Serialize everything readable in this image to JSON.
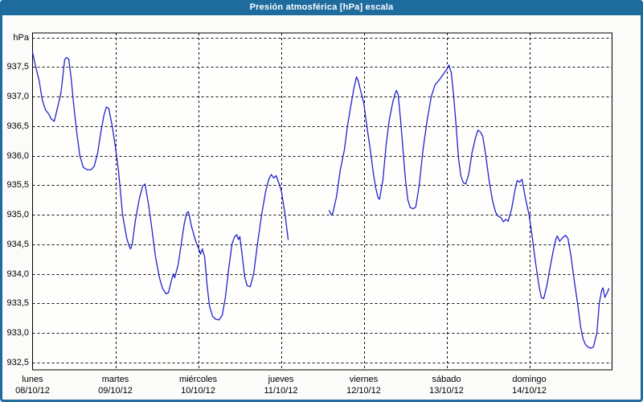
{
  "window": {
    "title": "Presión atmosférica [hPa] escala"
  },
  "colors": {
    "titlebar": "#1e6b9e",
    "frame": "#1e6b9e",
    "line": "#2222cc",
    "grid": "#111111",
    "window_bg": "#fbfcf9",
    "plot_bg": "#fefefd",
    "title_text": "#ffffff",
    "label_text": "#000000"
  },
  "chart_data": {
    "type": "line",
    "title": "Presión atmosférica [hPa] escala",
    "ylabel": "hPa",
    "ylim": [
      932.5,
      938.0
    ],
    "x_range_hours": 168,
    "grid": "dashed",
    "legend_position": "none",
    "y_ticks": [
      {
        "value": 938.0,
        "label": "hPa"
      },
      {
        "value": 937.5,
        "label": "937,5"
      },
      {
        "value": 937.0,
        "label": "937,0"
      },
      {
        "value": 936.5,
        "label": "936,5"
      },
      {
        "value": 936.0,
        "label": "936,0"
      },
      {
        "value": 935.5,
        "label": "935,5"
      },
      {
        "value": 935.0,
        "label": "935,0"
      },
      {
        "value": 934.5,
        "label": "934,5"
      },
      {
        "value": 934.0,
        "label": "934,0"
      },
      {
        "value": 933.5,
        "label": "933,5"
      },
      {
        "value": 933.0,
        "label": "933,0"
      },
      {
        "value": 932.5,
        "label": "932,5"
      }
    ],
    "x_days": [
      {
        "name": "lunes",
        "date": "08/10/12"
      },
      {
        "name": "martes",
        "date": "09/10/12"
      },
      {
        "name": "miércoles",
        "date": "10/10/12"
      },
      {
        "name": "jueves",
        "date": "11/10/12"
      },
      {
        "name": "viernes",
        "date": "12/10/12"
      },
      {
        "name": "sábado",
        "date": "13/10/12"
      },
      {
        "name": "domingo",
        "date": "14/10/12"
      }
    ],
    "series": [
      {
        "name": "Presión atmosférica",
        "unit": "hPa",
        "color": "#2222cc",
        "segments": [
          [
            [
              0.0,
              937.75
            ],
            [
              0.9,
              937.5
            ],
            [
              1.9,
              937.27
            ],
            [
              2.8,
              936.95
            ],
            [
              3.7,
              936.78
            ],
            [
              4.7,
              936.7
            ],
            [
              5.4,
              936.62
            ],
            [
              6.3,
              936.58
            ],
            [
              7.2,
              936.8
            ],
            [
              8.2,
              937.05
            ],
            [
              8.9,
              937.4
            ],
            [
              9.3,
              937.62
            ],
            [
              9.8,
              937.66
            ],
            [
              10.5,
              937.63
            ],
            [
              11.2,
              937.3
            ],
            [
              11.9,
              936.87
            ],
            [
              12.8,
              936.4
            ],
            [
              13.7,
              936.0
            ],
            [
              14.7,
              935.8
            ],
            [
              15.8,
              935.76
            ],
            [
              17.0,
              935.76
            ],
            [
              17.9,
              935.82
            ],
            [
              18.9,
              936.05
            ],
            [
              19.8,
              936.4
            ],
            [
              20.7,
              936.68
            ],
            [
              21.4,
              936.82
            ],
            [
              22.1,
              936.8
            ],
            [
              23.1,
              936.5
            ],
            [
              24.0,
              936.15
            ],
            [
              24.9,
              935.75
            ],
            [
              26.1,
              935.0
            ],
            [
              27.3,
              934.6
            ],
            [
              28.0,
              934.47
            ],
            [
              28.4,
              934.42
            ],
            [
              28.9,
              934.5
            ],
            [
              29.8,
              934.9
            ],
            [
              31.0,
              935.28
            ],
            [
              31.9,
              935.48
            ],
            [
              32.6,
              935.52
            ],
            [
              33.6,
              935.18
            ],
            [
              34.5,
              934.8
            ],
            [
              35.6,
              934.3
            ],
            [
              36.8,
              933.93
            ],
            [
              37.7,
              933.75
            ],
            [
              38.7,
              933.66
            ],
            [
              39.4,
              933.68
            ],
            [
              40.1,
              933.85
            ],
            [
              40.8,
              934.0
            ],
            [
              41.2,
              933.93
            ],
            [
              42.2,
              934.15
            ],
            [
              43.1,
              934.5
            ],
            [
              44.0,
              934.85
            ],
            [
              44.7,
              935.03
            ],
            [
              45.2,
              935.05
            ],
            [
              46.1,
              934.8
            ],
            [
              47.3,
              934.55
            ],
            [
              48.2,
              934.42
            ],
            [
              48.7,
              934.33
            ],
            [
              49.2,
              934.42
            ],
            [
              49.9,
              934.28
            ],
            [
              50.6,
              933.8
            ],
            [
              51.3,
              933.45
            ],
            [
              52.2,
              933.28
            ],
            [
              53.1,
              933.23
            ],
            [
              54.1,
              933.22
            ],
            [
              55.0,
              933.3
            ],
            [
              55.9,
              933.6
            ],
            [
              56.9,
              934.1
            ],
            [
              57.8,
              934.5
            ],
            [
              58.5,
              934.62
            ],
            [
              59.2,
              934.66
            ],
            [
              59.7,
              934.58
            ],
            [
              60.1,
              934.63
            ],
            [
              60.8,
              934.3
            ],
            [
              61.5,
              933.95
            ],
            [
              62.2,
              933.8
            ],
            [
              63.1,
              933.78
            ],
            [
              64.1,
              934.0
            ],
            [
              65.2,
              934.5
            ],
            [
              66.4,
              935.0
            ],
            [
              67.6,
              935.4
            ],
            [
              68.5,
              935.6
            ],
            [
              69.2,
              935.68
            ],
            [
              69.9,
              935.62
            ],
            [
              70.6,
              935.66
            ],
            [
              71.5,
              935.52
            ],
            [
              72.2,
              935.38
            ],
            [
              73.2,
              935.0
            ],
            [
              74.1,
              934.58
            ]
          ],
          [
            [
              86.0,
              935.07
            ],
            [
              86.7,
              934.99
            ],
            [
              87.1,
              935.04
            ],
            [
              88.1,
              935.3
            ],
            [
              89.2,
              935.75
            ],
            [
              90.4,
              936.1
            ],
            [
              91.3,
              936.5
            ],
            [
              92.3,
              936.85
            ],
            [
              93.2,
              937.15
            ],
            [
              93.9,
              937.33
            ],
            [
              94.4,
              937.27
            ],
            [
              95.1,
              937.1
            ],
            [
              96.0,
              936.9
            ],
            [
              96.9,
              936.5
            ],
            [
              97.9,
              936.1
            ],
            [
              98.8,
              935.7
            ],
            [
              99.5,
              935.45
            ],
            [
              100.2,
              935.28
            ],
            [
              100.6,
              935.26
            ],
            [
              101.6,
              935.6
            ],
            [
              102.5,
              936.18
            ],
            [
              103.4,
              936.6
            ],
            [
              104.4,
              936.9
            ],
            [
              105.1,
              937.05
            ],
            [
              105.5,
              937.1
            ],
            [
              106.0,
              937.03
            ],
            [
              106.7,
              936.6
            ],
            [
              107.4,
              936.1
            ],
            [
              108.1,
              935.6
            ],
            [
              108.8,
              935.25
            ],
            [
              109.5,
              935.12
            ],
            [
              110.4,
              935.1
            ],
            [
              111.1,
              935.13
            ],
            [
              112.1,
              935.5
            ],
            [
              113.2,
              936.1
            ],
            [
              114.4,
              936.6
            ],
            [
              115.6,
              937.0
            ],
            [
              116.7,
              937.2
            ],
            [
              117.9,
              937.28
            ],
            [
              119.1,
              937.38
            ],
            [
              120.0,
              937.45
            ],
            [
              120.7,
              937.53
            ],
            [
              121.4,
              937.4
            ],
            [
              122.1,
              937.0
            ],
            [
              122.8,
              936.5
            ],
            [
              123.5,
              935.95
            ],
            [
              124.2,
              935.65
            ],
            [
              124.9,
              935.54
            ],
            [
              125.6,
              935.52
            ],
            [
              126.5,
              935.7
            ],
            [
              127.4,
              936.05
            ],
            [
              128.4,
              936.3
            ],
            [
              129.1,
              936.43
            ],
            [
              129.8,
              936.4
            ],
            [
              130.5,
              936.33
            ],
            [
              131.4,
              936.0
            ],
            [
              132.3,
              935.6
            ],
            [
              133.3,
              935.25
            ],
            [
              134.2,
              935.05
            ],
            [
              134.9,
              934.98
            ],
            [
              135.8,
              934.95
            ],
            [
              136.5,
              934.88
            ],
            [
              137.2,
              934.92
            ],
            [
              137.9,
              934.89
            ],
            [
              138.9,
              935.1
            ],
            [
              139.8,
              935.4
            ],
            [
              140.5,
              935.58
            ],
            [
              141.2,
              935.55
            ],
            [
              141.9,
              935.6
            ],
            [
              142.8,
              935.3
            ],
            [
              144.0,
              934.98
            ],
            [
              144.9,
              934.6
            ],
            [
              145.8,
              934.2
            ],
            [
              146.8,
              933.8
            ],
            [
              147.5,
              933.6
            ],
            [
              148.2,
              933.58
            ],
            [
              149.1,
              933.8
            ],
            [
              150.0,
              934.1
            ],
            [
              151.0,
              934.4
            ],
            [
              151.7,
              934.58
            ],
            [
              152.1,
              934.64
            ],
            [
              152.8,
              934.55
            ],
            [
              153.5,
              934.6
            ],
            [
              154.5,
              934.65
            ],
            [
              155.2,
              934.6
            ],
            [
              156.1,
              934.3
            ],
            [
              157.0,
              933.9
            ],
            [
              158.0,
              933.5
            ],
            [
              158.9,
              933.1
            ],
            [
              159.6,
              932.9
            ],
            [
              160.3,
              932.8
            ],
            [
              161.0,
              932.76
            ],
            [
              161.9,
              932.74
            ],
            [
              162.6,
              932.76
            ],
            [
              163.6,
              933.0
            ],
            [
              164.3,
              933.5
            ],
            [
              165.0,
              933.72
            ],
            [
              165.4,
              933.76
            ],
            [
              165.9,
              933.6
            ],
            [
              166.6,
              933.68
            ],
            [
              167.1,
              933.75
            ]
          ]
        ]
      }
    ]
  }
}
